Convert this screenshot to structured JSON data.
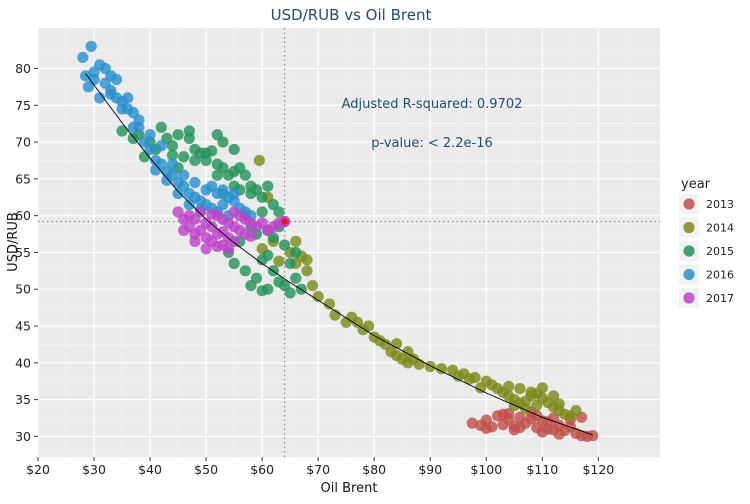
{
  "chart_data": {
    "type": "scatter",
    "title": "USD/RUB vs Oil Brent",
    "xlabel": "Oil Brent",
    "ylabel": "USD/RUB",
    "xlim": [
      20,
      131
    ],
    "ylim": [
      27.2,
      85.5
    ],
    "x_ticks": [
      20,
      30,
      40,
      50,
      60,
      70,
      80,
      90,
      100,
      110,
      120
    ],
    "x_tick_labels": [
      "$20",
      "$30",
      "$40",
      "$50",
      "$60",
      "$70",
      "$80",
      "$90",
      "$100",
      "$110",
      "$120"
    ],
    "y_ticks": [
      30,
      35,
      40,
      45,
      50,
      55,
      60,
      65,
      70,
      75,
      80
    ],
    "y_tick_labels": [
      "30",
      "35",
      "40",
      "45",
      "50",
      "55",
      "60",
      "65",
      "70",
      "75",
      "80"
    ],
    "grid": true,
    "legend": {
      "title": "year",
      "placement": "right"
    },
    "annotations": [
      "Adjusted R-squared:  0.9702",
      "p-value: < 2.2e-16"
    ],
    "reference_lines": {
      "x": 64,
      "y": 59.2
    },
    "highlight_point": {
      "x": 64,
      "y": 59.2
    },
    "fit_line": {
      "x": [
        28.5,
        35,
        40,
        45,
        50,
        55,
        60,
        65,
        70,
        80,
        90,
        100,
        110,
        119
      ],
      "y": [
        79.3,
        72.6,
        67.8,
        63.3,
        59.5,
        56.3,
        53.5,
        50.9,
        48.5,
        43.7,
        39.6,
        35.9,
        32.6,
        30.2
      ]
    },
    "series": [
      {
        "name": "2013",
        "color": "#c0504a",
        "points": [
          [
            97.5,
            31.8
          ],
          [
            99,
            31.5
          ],
          [
            100,
            32.2
          ],
          [
            101,
            31.3
          ],
          [
            102,
            32.8
          ],
          [
            103,
            31.6
          ],
          [
            104,
            32.3
          ],
          [
            105,
            31.4
          ],
          [
            106,
            32.6
          ],
          [
            107,
            31.8
          ],
          [
            108,
            32.4
          ],
          [
            109,
            31.2
          ],
          [
            110,
            32.1
          ],
          [
            111,
            31.0
          ],
          [
            112,
            32.5
          ],
          [
            113,
            31.5
          ],
          [
            114,
            30.8
          ],
          [
            115,
            31.3
          ],
          [
            116,
            30.4
          ],
          [
            117,
            30.1
          ],
          [
            118,
            30.0
          ],
          [
            119,
            30.1
          ],
          [
            104,
            33.1
          ],
          [
            108,
            33.3
          ],
          [
            110,
            30.6
          ],
          [
            113,
            30.3
          ],
          [
            105,
            30.9
          ],
          [
            100,
            31.1
          ],
          [
            106,
            31.2
          ],
          [
            109,
            32.8
          ],
          [
            111,
            32.0
          ],
          [
            115,
            32.3
          ],
          [
            117,
            32.6
          ],
          [
            112,
            30.9
          ],
          [
            103,
            33.0
          ]
        ]
      },
      {
        "name": "2014",
        "color": "#7e8a1b",
        "points": [
          [
            59.5,
            67.5
          ],
          [
            61,
            62.5
          ],
          [
            60,
            55.5
          ],
          [
            62,
            56.5
          ],
          [
            65,
            55.0
          ],
          [
            66,
            53.5
          ],
          [
            67,
            54.5
          ],
          [
            68,
            52.5
          ],
          [
            69,
            50.5
          ],
          [
            70,
            49.0
          ],
          [
            72,
            48.0
          ],
          [
            73,
            46.5
          ],
          [
            75,
            45.5
          ],
          [
            77,
            45.5
          ],
          [
            78,
            44.5
          ],
          [
            79,
            45.0
          ],
          [
            80,
            43.5
          ],
          [
            81,
            43.0
          ],
          [
            82,
            42.5
          ],
          [
            83,
            41.5
          ],
          [
            84,
            41.0
          ],
          [
            85,
            40.5
          ],
          [
            86,
            40.0
          ],
          [
            88,
            39.8
          ],
          [
            90,
            39.5
          ],
          [
            92,
            39.2
          ],
          [
            94,
            39.0
          ],
          [
            96,
            38.5
          ],
          [
            98,
            38.0
          ],
          [
            100,
            37.5
          ],
          [
            102,
            36.5
          ],
          [
            103,
            36.0
          ],
          [
            104,
            35.5
          ],
          [
            105,
            35.0
          ],
          [
            106,
            34.5
          ],
          [
            107,
            34.8
          ],
          [
            108,
            35.5
          ],
          [
            109,
            35.8
          ],
          [
            110,
            35.2
          ],
          [
            111,
            34.6
          ],
          [
            112,
            34.0
          ],
          [
            113,
            33.5
          ],
          [
            114,
            33.0
          ],
          [
            115,
            32.8
          ],
          [
            104,
            36.8
          ],
          [
            106,
            36.5
          ],
          [
            108,
            36.0
          ],
          [
            110,
            36.6
          ],
          [
            112,
            35.5
          ],
          [
            105,
            34.2
          ],
          [
            107,
            33.8
          ],
          [
            109,
            34.2
          ],
          [
            113,
            34.4
          ],
          [
            116,
            33.5
          ],
          [
            101,
            37.0
          ],
          [
            97,
            37.8
          ],
          [
            95,
            38.2
          ],
          [
            99,
            36.6
          ],
          [
            76,
            46.2
          ],
          [
            84,
            42.6
          ],
          [
            86,
            41.5
          ],
          [
            87,
            40.5
          ],
          [
            66,
            56.5
          ],
          [
            68,
            54.0
          ],
          [
            63,
            53.8
          ]
        ]
      },
      {
        "name": "2015",
        "color": "#23925a",
        "points": [
          [
            35,
            71.5
          ],
          [
            37,
            70.5
          ],
          [
            39,
            68.0
          ],
          [
            41,
            69.0
          ],
          [
            42,
            72.0
          ],
          [
            43,
            70.5
          ],
          [
            44,
            69.5
          ],
          [
            45,
            66.5
          ],
          [
            46,
            68.0
          ],
          [
            47,
            70.5
          ],
          [
            48,
            69.0
          ],
          [
            49,
            68.5
          ],
          [
            50,
            67.5
          ],
          [
            51,
            68.8
          ],
          [
            52,
            67.0
          ],
          [
            53,
            66.5
          ],
          [
            54,
            65.5
          ],
          [
            55,
            64.0
          ],
          [
            56,
            66.5
          ],
          [
            57,
            65.5
          ],
          [
            58,
            64.0
          ],
          [
            59,
            63.5
          ],
          [
            60,
            62.5
          ],
          [
            61,
            64.0
          ],
          [
            62,
            61.5
          ],
          [
            63,
            60.5
          ],
          [
            61,
            58.0
          ],
          [
            58,
            58.5
          ],
          [
            56,
            56.5
          ],
          [
            54,
            55.0
          ],
          [
            55,
            53.5
          ],
          [
            57,
            52.5
          ],
          [
            59,
            51.5
          ],
          [
            61,
            50.0
          ],
          [
            62,
            52.5
          ],
          [
            63,
            51.0
          ],
          [
            64,
            50.5
          ],
          [
            65,
            49.5
          ],
          [
            66,
            51.5
          ],
          [
            67,
            50.0
          ],
          [
            65,
            53.5
          ],
          [
            60,
            54.0
          ],
          [
            58,
            50.5
          ],
          [
            60,
            49.8
          ],
          [
            52,
            71.0
          ],
          [
            53,
            70.0
          ],
          [
            55,
            69.0
          ],
          [
            50,
            68.5
          ],
          [
            47,
            71.5
          ],
          [
            45,
            71.0
          ],
          [
            40,
            70.0
          ],
          [
            38,
            71.0
          ],
          [
            44,
            68.2
          ],
          [
            48,
            67.5
          ],
          [
            52,
            65.5
          ],
          [
            56,
            63.5
          ],
          [
            58,
            63.0
          ],
          [
            60,
            60.5
          ],
          [
            62,
            57.0
          ],
          [
            64,
            56.0
          ],
          [
            66,
            55.0
          ],
          [
            63,
            58.5
          ],
          [
            57,
            60.0
          ],
          [
            59,
            57.5
          ],
          [
            61,
            54.6
          ],
          [
            53,
            63.0
          ],
          [
            55,
            66.0
          ]
        ]
      },
      {
        "name": "2016",
        "color": "#2a90cf",
        "points": [
          [
            28,
            81.5
          ],
          [
            29.5,
            83.0
          ],
          [
            28.5,
            79.0
          ],
          [
            29,
            77.5
          ],
          [
            30,
            78.5
          ],
          [
            31,
            80.5
          ],
          [
            32,
            78.0
          ],
          [
            33,
            77.0
          ],
          [
            34,
            78.5
          ],
          [
            35,
            75.5
          ],
          [
            36,
            76.0
          ],
          [
            31,
            76.0
          ],
          [
            30,
            79.5
          ],
          [
            33,
            79.0
          ],
          [
            34,
            76.0
          ],
          [
            35,
            74.5
          ],
          [
            37,
            74.0
          ],
          [
            38,
            72.0
          ],
          [
            39,
            70.0
          ],
          [
            40,
            69.0
          ],
          [
            41,
            67.5
          ],
          [
            42,
            67.0
          ],
          [
            43,
            66.0
          ],
          [
            44,
            65.5
          ],
          [
            45,
            64.5
          ],
          [
            46,
            64.0
          ],
          [
            47,
            63.0
          ],
          [
            48,
            62.5
          ],
          [
            49,
            62.0
          ],
          [
            50,
            61.5
          ],
          [
            51,
            61.0
          ],
          [
            52,
            60.5
          ],
          [
            53,
            61.5
          ],
          [
            54,
            60.0
          ],
          [
            55,
            62.0
          ],
          [
            56,
            61.0
          ],
          [
            57,
            60.5
          ],
          [
            58,
            60.0
          ],
          [
            44,
            67.0
          ],
          [
            46,
            65.5
          ],
          [
            48,
            64.5
          ],
          [
            50,
            63.5
          ],
          [
            52,
            63.0
          ],
          [
            54,
            62.5
          ],
          [
            42,
            69.5
          ],
          [
            40,
            71.0
          ],
          [
            38,
            73.0
          ],
          [
            36,
            74.5
          ],
          [
            45,
            63.0
          ],
          [
            47,
            61.5
          ],
          [
            49,
            60.8
          ],
          [
            51,
            64.0
          ],
          [
            53,
            63.5
          ],
          [
            55,
            63.0
          ],
          [
            43,
            64.8
          ],
          [
            41,
            66.2
          ],
          [
            37,
            72.0
          ],
          [
            33,
            76.5
          ],
          [
            32,
            80.0
          ]
        ]
      },
      {
        "name": "2017",
        "color": "#bd44c9",
        "points": [
          [
            45,
            60.5
          ],
          [
            46,
            59.5
          ],
          [
            47,
            58.5
          ],
          [
            48,
            57.5
          ],
          [
            49,
            58.0
          ],
          [
            50,
            57.0
          ],
          [
            51,
            56.5
          ],
          [
            52,
            57.5
          ],
          [
            53,
            56.0
          ],
          [
            54,
            57.0
          ],
          [
            55,
            56.5
          ],
          [
            56,
            58.0
          ],
          [
            57,
            57.5
          ],
          [
            58,
            59.0
          ],
          [
            59,
            58.5
          ],
          [
            60,
            59.0
          ],
          [
            61,
            58.0
          ],
          [
            62,
            58.5
          ],
          [
            63,
            59.0
          ],
          [
            64,
            59.2
          ],
          [
            46,
            58.0
          ],
          [
            47,
            60.0
          ],
          [
            48,
            59.5
          ],
          [
            49,
            60.5
          ],
          [
            50,
            59.0
          ],
          [
            51,
            58.5
          ],
          [
            52,
            60.0
          ],
          [
            53,
            59.5
          ],
          [
            54,
            59.0
          ],
          [
            55,
            58.5
          ],
          [
            56,
            60.0
          ],
          [
            57,
            59.5
          ],
          [
            50,
            55.5
          ],
          [
            52,
            55.8
          ],
          [
            54,
            55.5
          ],
          [
            48,
            56.5
          ],
          [
            55,
            60.5
          ],
          [
            53,
            57.8
          ],
          [
            51,
            60.2
          ],
          [
            58,
            57.2
          ]
        ]
      }
    ]
  }
}
